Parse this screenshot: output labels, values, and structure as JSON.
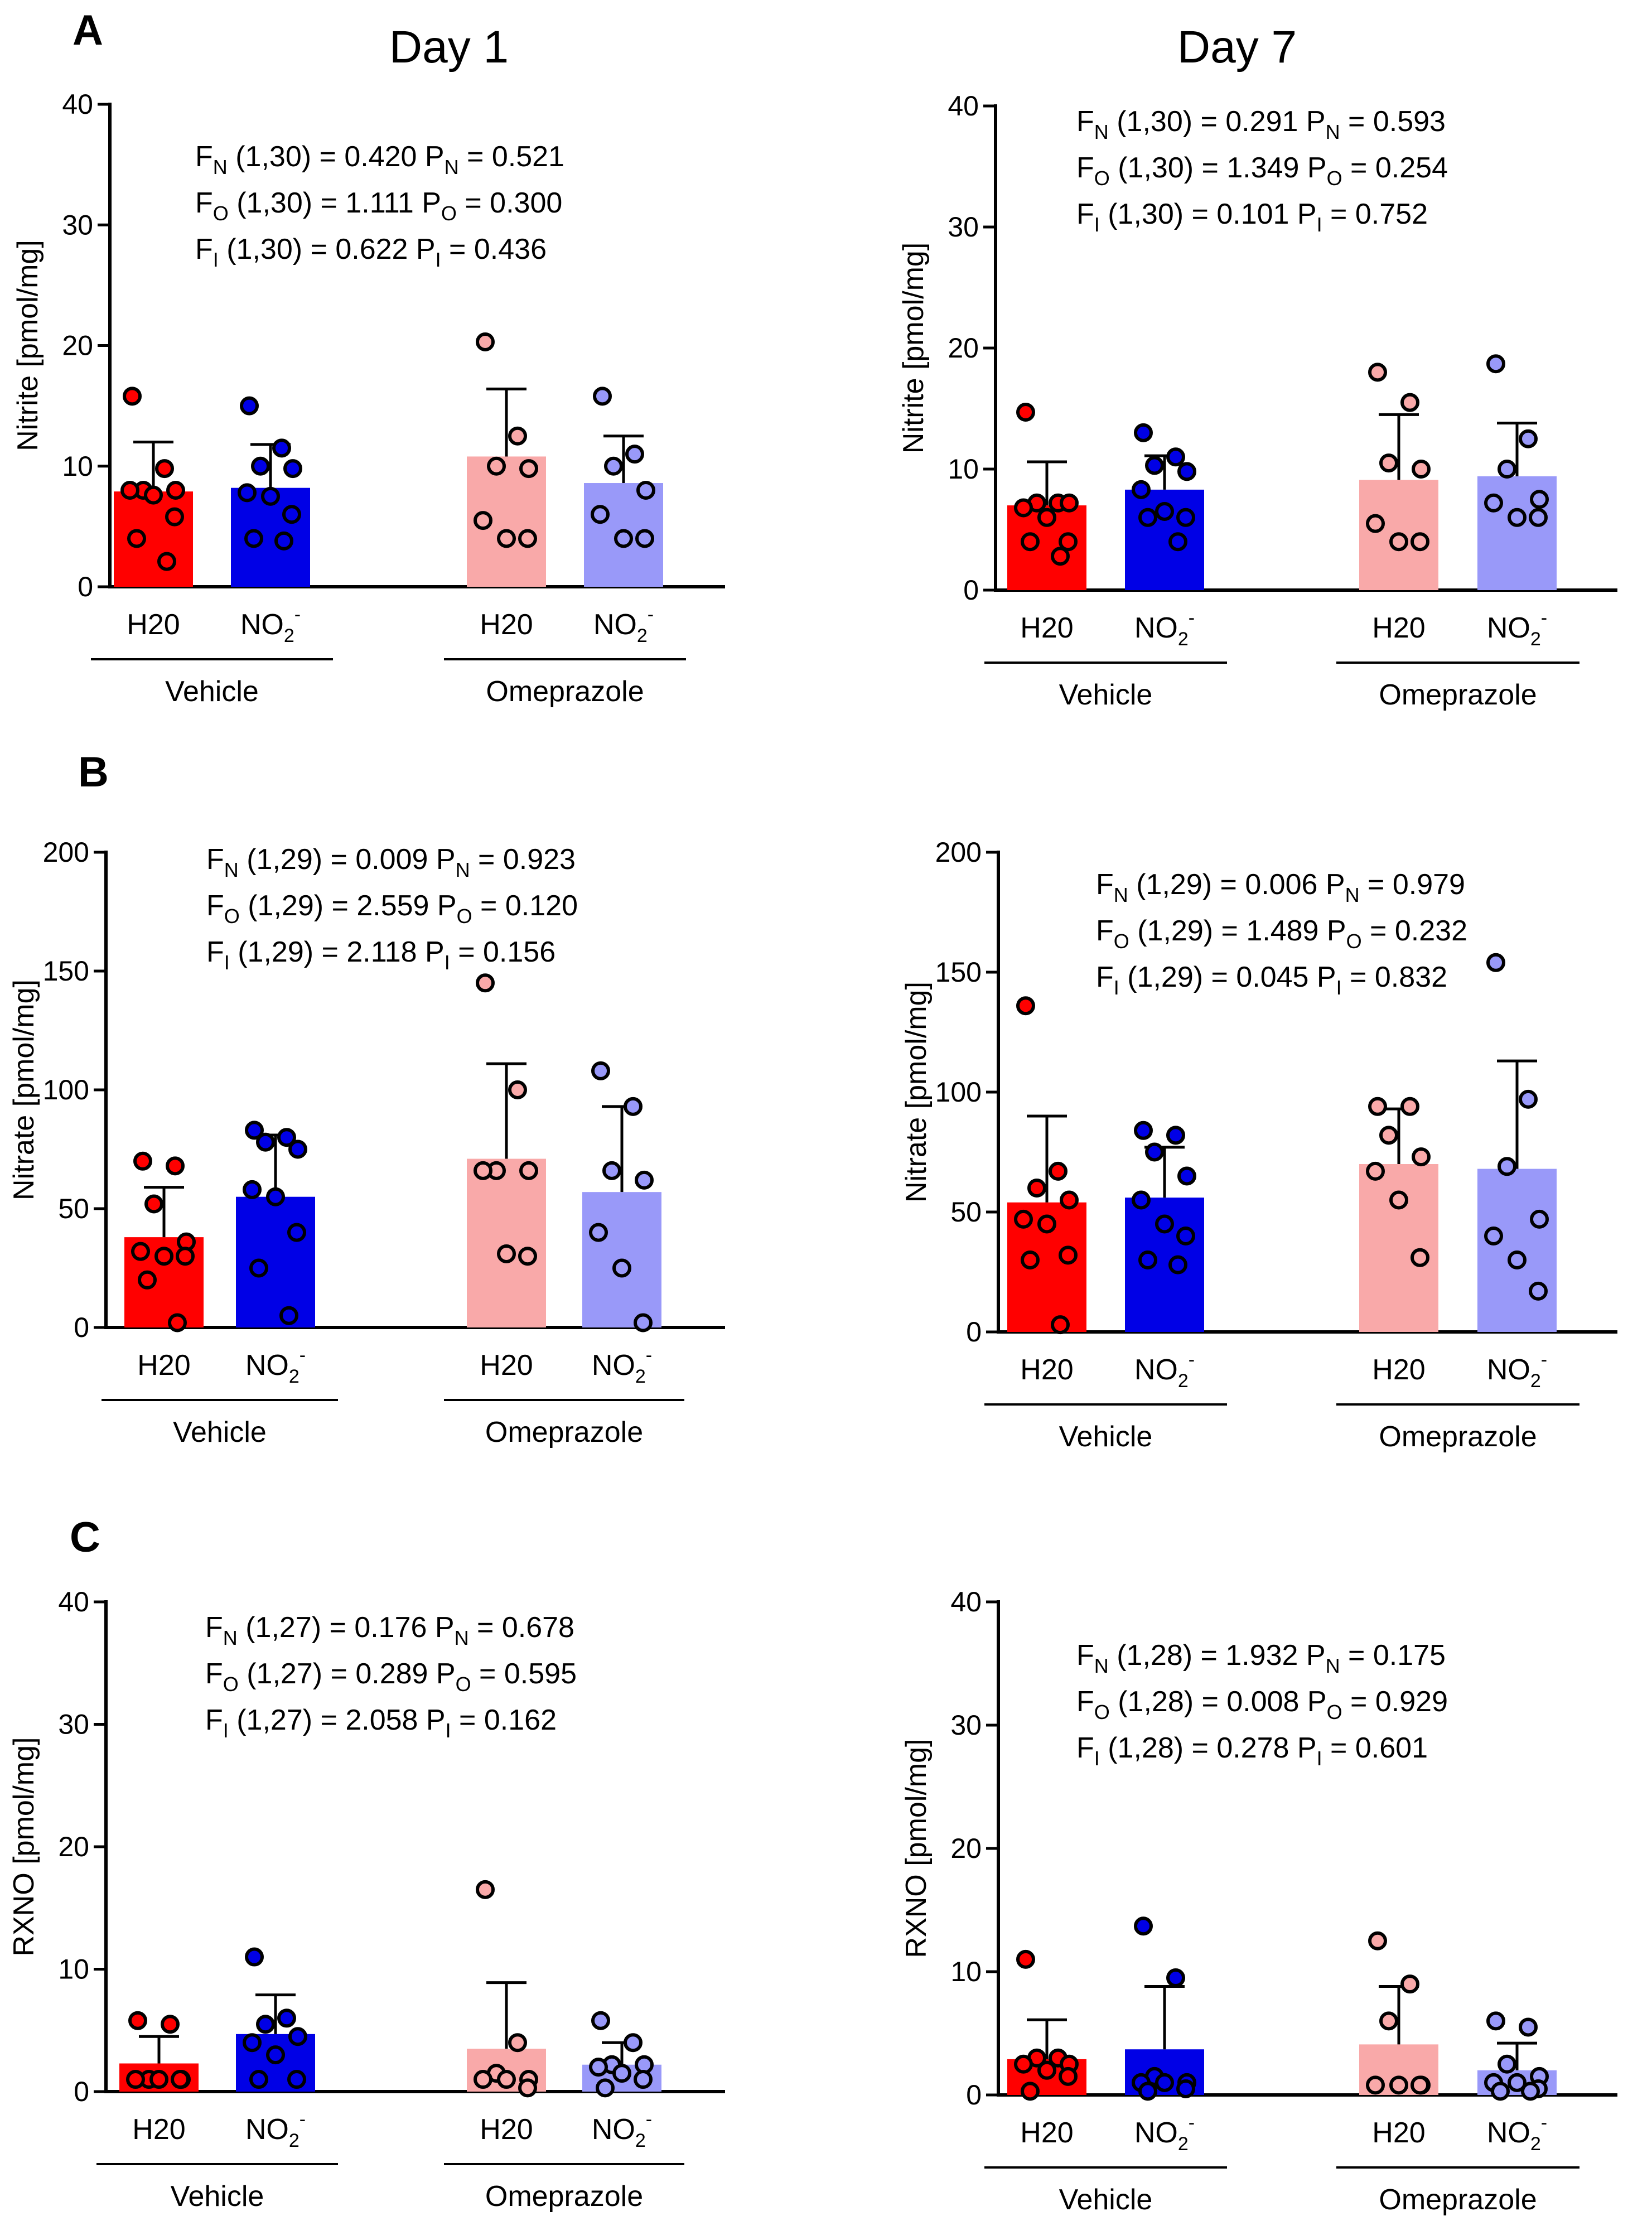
{
  "colors": {
    "vehicle_h2o": "#ff0000",
    "vehicle_no2": "#0000e6",
    "omeprazole_h2o": "#f9a9a9",
    "omeprazole_no2": "#9999f9",
    "axis": "#000000"
  },
  "figure": {
    "column_titles": [
      "Day 1",
      "Day 7"
    ],
    "panel_letters": [
      "A",
      "B",
      "C"
    ]
  },
  "chart_data": [
    {
      "id": "nitrite-day1",
      "type": "bar",
      "row": "A",
      "column": "Day 1",
      "ylabel": "Nitrite [pmol/mg]",
      "ylim": [
        0,
        40
      ],
      "yticks": [
        0,
        10,
        20,
        30,
        40
      ],
      "tick_labels": [
        "H20",
        "NO2-",
        "H20",
        "NO2-"
      ],
      "group_labels": [
        "Vehicle",
        "Omeprazole"
      ],
      "stats": [
        {
          "f": "F",
          "fs": "N",
          "df": "(1,30)",
          "fv": "0.420",
          "p": "P",
          "ps": "N",
          "pv": "0.521"
        },
        {
          "f": "F",
          "fs": "O",
          "df": "(1,30)",
          "fv": "1.111",
          "p": "P",
          "ps": "O",
          "pv": "0.300"
        },
        {
          "f": "F",
          "fs": "I",
          "df": "(1,30)",
          "fv": "0.622",
          "p": "P",
          "ps": "I",
          "pv": "0.436"
        }
      ],
      "series": [
        {
          "name": "Vehicle H2O",
          "mean": 7.9,
          "sd": 4.1,
          "points": [
            15.8,
            9.8,
            8.0,
            8.0,
            8.0,
            7.6,
            5.8,
            4.0,
            2.1
          ]
        },
        {
          "name": "Vehicle NO2-",
          "mean": 8.2,
          "sd": 3.6,
          "points": [
            15.0,
            11.5,
            10.0,
            9.8,
            7.8,
            7.5,
            6.0,
            4.0,
            3.8
          ]
        },
        {
          "name": "Omeprazole H2O",
          "mean": 10.8,
          "sd": 5.6,
          "points": [
            20.3,
            12.5,
            10.0,
            9.8,
            5.5,
            4.0,
            4.0
          ]
        },
        {
          "name": "Omeprazole NO2-",
          "mean": 8.6,
          "sd": 3.9,
          "points": [
            15.8,
            11.0,
            10.0,
            8.0,
            6.0,
            4.0,
            4.0
          ]
        }
      ]
    },
    {
      "id": "nitrite-day7",
      "type": "bar",
      "row": "A",
      "column": "Day 7",
      "ylabel": "Nitrite [pmol/mg]",
      "ylim": [
        0,
        40
      ],
      "yticks": [
        0,
        10,
        20,
        30,
        40
      ],
      "tick_labels": [
        "H20",
        "NO2-",
        "H20",
        "NO2-"
      ],
      "group_labels": [
        "Vehicle",
        "Omeprazole"
      ],
      "stats": [
        {
          "f": "F",
          "fs": "N",
          "df": "(1,30)",
          "fv": "0.291",
          "p": "P",
          "ps": "N",
          "pv": "0.593"
        },
        {
          "f": "F",
          "fs": "O",
          "df": "(1,30)",
          "fv": "1.349",
          "p": "P",
          "ps": "O",
          "pv": "0.254"
        },
        {
          "f": "F",
          "fs": "I",
          "df": "(1,30)",
          "fv": "0.101",
          "p": "P",
          "ps": "I",
          "pv": "0.752"
        }
      ],
      "series": [
        {
          "name": "Vehicle H2O",
          "mean": 7.0,
          "sd": 3.6,
          "points": [
            14.7,
            7.2,
            7.2,
            7.2,
            6.8,
            6.0,
            4.0,
            4.0,
            2.8
          ]
        },
        {
          "name": "Vehicle NO2-",
          "mean": 8.3,
          "sd": 2.8,
          "points": [
            13.0,
            11.0,
            10.3,
            9.8,
            8.3,
            6.5,
            6.0,
            6.0,
            4.0
          ]
        },
        {
          "name": "Omeprazole H2O",
          "mean": 9.1,
          "sd": 5.4,
          "points": [
            18.0,
            15.5,
            10.5,
            10.0,
            5.5,
            4.0,
            4.0
          ]
        },
        {
          "name": "Omeprazole NO2-",
          "mean": 9.4,
          "sd": 4.4,
          "points": [
            18.7,
            12.5,
            10.0,
            7.5,
            7.2,
            6.0,
            6.0
          ]
        }
      ]
    },
    {
      "id": "nitrate-day1",
      "type": "bar",
      "row": "B",
      "column": "Day 1",
      "ylabel": "Nitrate [pmol/mg]",
      "ylim": [
        0,
        200
      ],
      "yticks": [
        0,
        50,
        100,
        150,
        200
      ],
      "tick_labels": [
        "H20",
        "NO2-",
        "H20",
        "NO2-"
      ],
      "group_labels": [
        "Vehicle",
        "Omeprazole"
      ],
      "stats": [
        {
          "f": "F",
          "fs": "N",
          "df": "(1,29)",
          "fv": "0.009",
          "p": "P",
          "ps": "N",
          "pv": "0.923"
        },
        {
          "f": "F",
          "fs": "O",
          "df": "(1,29)",
          "fv": "2.559",
          "p": "P",
          "ps": "O",
          "pv": "0.120"
        },
        {
          "f": "F",
          "fs": "I",
          "df": "(1,29)",
          "fv": "2.118",
          "p": "P",
          "ps": "I",
          "pv": "0.156"
        }
      ],
      "series": [
        {
          "name": "Vehicle H2O",
          "mean": 38,
          "sd": 21,
          "points": [
            70,
            68,
            52,
            36,
            32,
            30,
            30,
            20,
            2
          ]
        },
        {
          "name": "Vehicle NO2-",
          "mean": 55,
          "sd": 26,
          "points": [
            83,
            80,
            78,
            75,
            58,
            55,
            40,
            25,
            5
          ]
        },
        {
          "name": "Omeprazole H2O",
          "mean": 71,
          "sd": 40,
          "points": [
            145,
            100,
            66,
            66,
            66,
            31,
            30
          ]
        },
        {
          "name": "Omeprazole NO2-",
          "mean": 57,
          "sd": 36,
          "points": [
            108,
            93,
            66,
            62,
            40,
            25,
            2
          ]
        }
      ]
    },
    {
      "id": "nitrate-day7",
      "type": "bar",
      "row": "B",
      "column": "Day 7",
      "ylabel": "Nitrate [pmol/mg]",
      "ylim": [
        0,
        200
      ],
      "yticks": [
        0,
        50,
        100,
        150,
        200
      ],
      "tick_labels": [
        "H20",
        "NO2-",
        "H20",
        "NO2-"
      ],
      "group_labels": [
        "Vehicle",
        "Omeprazole"
      ],
      "stats": [
        {
          "f": "F",
          "fs": "N",
          "df": "(1,29)",
          "fv": "0.006",
          "p": "P",
          "ps": "N",
          "pv": "0.979"
        },
        {
          "f": "F",
          "fs": "O",
          "df": "(1,29)",
          "fv": "1.489",
          "p": "P",
          "ps": "O",
          "pv": "0.232"
        },
        {
          "f": "F",
          "fs": "I",
          "df": "(1,29)",
          "fv": "0.045",
          "p": "P",
          "ps": "I",
          "pv": "0.832"
        }
      ],
      "series": [
        {
          "name": "Vehicle H2O",
          "mean": 54,
          "sd": 36,
          "points": [
            136,
            67,
            60,
            55,
            47,
            45,
            32,
            30,
            3
          ]
        },
        {
          "name": "Vehicle NO2-",
          "mean": 56,
          "sd": 21,
          "points": [
            84,
            82,
            75,
            65,
            55,
            45,
            40,
            30,
            28
          ]
        },
        {
          "name": "Omeprazole H2O",
          "mean": 70,
          "sd": 23,
          "points": [
            94,
            94,
            82,
            73,
            67,
            55,
            31
          ]
        },
        {
          "name": "Omeprazole NO2-",
          "mean": 68,
          "sd": 45,
          "points": [
            154,
            97,
            69,
            47,
            40,
            30,
            17
          ]
        }
      ]
    },
    {
      "id": "rxno-day1",
      "type": "bar",
      "row": "C",
      "column": "Day 1",
      "ylabel": "RXNO [pmol/mg]",
      "ylim": [
        0,
        40
      ],
      "yticks": [
        0,
        10,
        20,
        30,
        40
      ],
      "tick_labels": [
        "H20",
        "NO2-",
        "H20",
        "NO2-"
      ],
      "group_labels": [
        "Vehicle",
        "Omeprazole"
      ],
      "stats": [
        {
          "f": "F",
          "fs": "N",
          "df": "(1,27)",
          "fv": "0.176",
          "p": "P",
          "ps": "N",
          "pv": "0.678"
        },
        {
          "f": "F",
          "fs": "O",
          "df": "(1,27)",
          "fv": "0.289",
          "p": "P",
          "ps": "O",
          "pv": "0.595"
        },
        {
          "f": "F",
          "fs": "I",
          "df": "(1,27)",
          "fv": "2.058",
          "p": "P",
          "ps": "I",
          "pv": "0.162"
        }
      ],
      "series": [
        {
          "name": "Vehicle H2O",
          "mean": 2.3,
          "sd": 2.2,
          "points": [
            5.8,
            5.5,
            1.0,
            1.0,
            1.0,
            1.0,
            1.0
          ]
        },
        {
          "name": "Vehicle NO2-",
          "mean": 4.7,
          "sd": 3.2,
          "points": [
            11.0,
            6.0,
            5.5,
            4.5,
            4.0,
            3.0,
            1.0,
            1.0
          ]
        },
        {
          "name": "Omeprazole H2O",
          "mean": 3.5,
          "sd": 5.4,
          "points": [
            16.5,
            4.0,
            1.5,
            1.0,
            1.0,
            1.0,
            0.3
          ]
        },
        {
          "name": "Omeprazole NO2-",
          "mean": 2.2,
          "sd": 1.8,
          "points": [
            5.8,
            4.0,
            2.2,
            2.2,
            2.0,
            1.5,
            1.0,
            0.3
          ]
        }
      ]
    },
    {
      "id": "rxno-day7",
      "type": "bar",
      "row": "C",
      "column": "Day 7",
      "ylabel": "RXNO [pmol/mg]",
      "ylim": [
        0,
        40
      ],
      "yticks": [
        0,
        10,
        20,
        30,
        40
      ],
      "tick_labels": [
        "H20",
        "NO2-",
        "H20",
        "NO2-"
      ],
      "group_labels": [
        "Vehicle",
        "Omeprazole"
      ],
      "stats": [
        {
          "f": "F",
          "fs": "N",
          "df": "(1,28)",
          "fv": "1.932",
          "p": "P",
          "ps": "N",
          "pv": "0.175"
        },
        {
          "f": "F",
          "fs": "O",
          "df": "(1,28)",
          "fv": "0.008",
          "p": "P",
          "ps": "O",
          "pv": "0.929"
        },
        {
          "f": "F",
          "fs": "I",
          "df": "(1,28)",
          "fv": "0.278",
          "p": "P",
          "ps": "I",
          "pv": "0.601"
        }
      ],
      "series": [
        {
          "name": "Vehicle H2O",
          "mean": 2.9,
          "sd": 3.2,
          "points": [
            11.0,
            3.0,
            3.0,
            2.5,
            2.5,
            2.0,
            1.5,
            0.3
          ]
        },
        {
          "name": "Vehicle NO2-",
          "mean": 3.7,
          "sd": 5.1,
          "points": [
            13.7,
            9.5,
            1.5,
            1.0,
            1.0,
            1.0,
            0.5,
            0.3
          ]
        },
        {
          "name": "Omeprazole H2O",
          "mean": 4.1,
          "sd": 4.7,
          "points": [
            12.5,
            9.0,
            6.0,
            0.8,
            0.8,
            0.8,
            0.8
          ]
        },
        {
          "name": "Omeprazole NO2-",
          "mean": 2.0,
          "sd": 2.2,
          "points": [
            6.0,
            5.5,
            2.5,
            1.5,
            1.0,
            1.0,
            0.5,
            0.3,
            0.3
          ]
        }
      ]
    }
  ]
}
